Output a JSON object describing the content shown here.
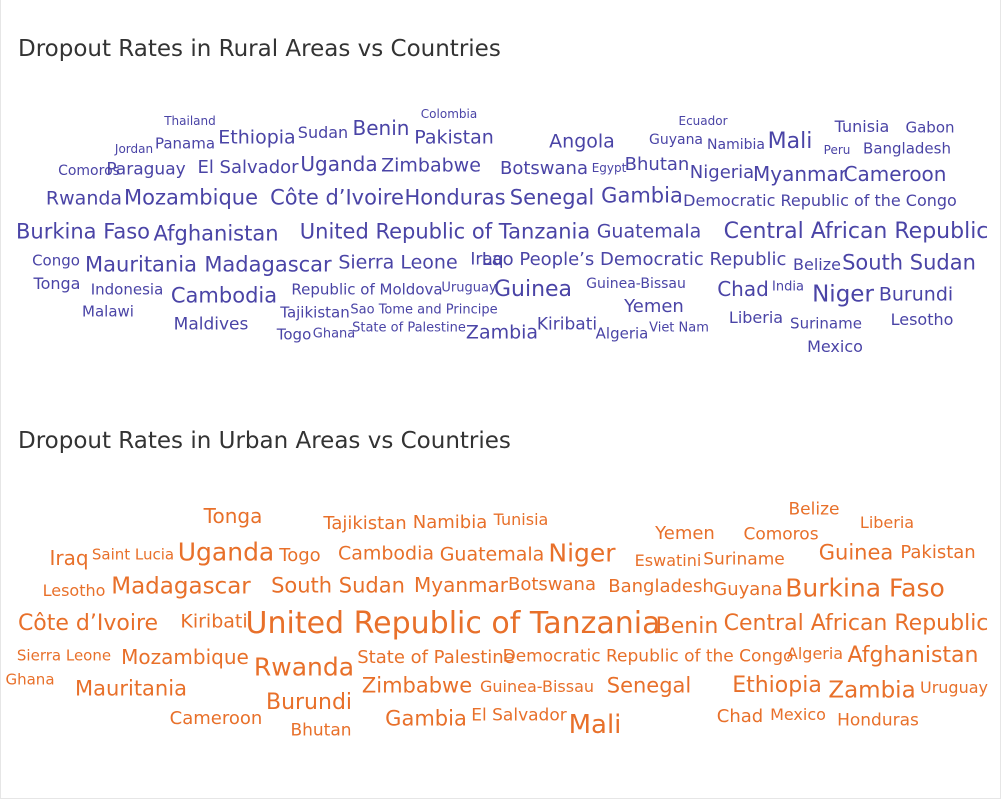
{
  "colors": {
    "rural": "#4a44a6",
    "urban": "#e8702a",
    "title": "#333333"
  },
  "rural": {
    "title": "Dropout Rates in Rural Areas vs Countries",
    "words": [
      "Thailand",
      "Colombia",
      "Ecuador",
      "Jordan",
      "Panama",
      "Ethiopia",
      "Sudan",
      "Benin",
      "Pakistan",
      "Angola",
      "Guyana",
      "Namibia",
      "Mali",
      "Tunisia",
      "Gabon",
      "Peru",
      "Bangladesh",
      "Comoros",
      "Paraguay",
      "El Salvador",
      "Uganda",
      "Zimbabwe",
      "Botswana",
      "Egypt",
      "Bhutan",
      "Nigeria",
      "Myanmar",
      "Cameroon",
      "Rwanda",
      "Mozambique",
      "Côte d’Ivoire",
      "Honduras",
      "Senegal",
      "Gambia",
      "Democratic Republic of the Congo",
      "Burkina Faso",
      "Afghanistan",
      "United Republic of Tanzania",
      "Guatemala",
      "Central African Republic",
      "Congo",
      "Mauritania",
      "Madagascar",
      "Sierra Leone",
      "Iraq",
      "Lao People’s Democratic Republic",
      "Belize",
      "South Sudan",
      "Tonga",
      "Indonesia",
      "Cambodia",
      "Republic of Moldova",
      "Uruguay",
      "Guinea",
      "Guinea-Bissau",
      "Chad",
      "India",
      "Niger",
      "Burundi",
      "Malawi",
      "Tajikistan",
      "Sao Tome and Principe",
      "Yemen",
      "Liberia",
      "Lesotho",
      "Maldives",
      "Togo",
      "Ghana",
      "State of Palestine",
      "Zambia",
      "Kiribati",
      "Algeria",
      "Viet Nam",
      "Suriname",
      "Mexico"
    ]
  },
  "urban": {
    "title": "Dropout Rates in Urban Areas vs Countries",
    "words": [
      "Belize",
      "Tonga",
      "Tajikistan",
      "Namibia",
      "Tunisia",
      "Yemen",
      "Comoros",
      "Liberia",
      "Iraq",
      "Saint Lucia",
      "Uganda",
      "Togo",
      "Cambodia",
      "Guatemala",
      "Niger",
      "Eswatini",
      "Suriname",
      "Guinea",
      "Pakistan",
      "Lesotho",
      "Madagascar",
      "South Sudan",
      "Myanmar",
      "Botswana",
      "Bangladesh",
      "Guyana",
      "Burkina Faso",
      "Côte d’Ivoire",
      "Kiribati",
      "United Republic of Tanzania",
      "Benin",
      "Central African Republic",
      "Sierra Leone",
      "Mozambique",
      "Rwanda",
      "State of Palestine",
      "Democratic Republic of the Congo",
      "Algeria",
      "Afghanistan",
      "Ghana",
      "Mauritania",
      "Burundi",
      "Zimbabwe",
      "Guinea-Bissau",
      "Senegal",
      "Ethiopia",
      "Zambia",
      "Uruguay",
      "Cameroon",
      "Gambia",
      "El Salvador",
      "Mali",
      "Chad",
      "Mexico",
      "Honduras",
      "Bhutan"
    ]
  }
}
